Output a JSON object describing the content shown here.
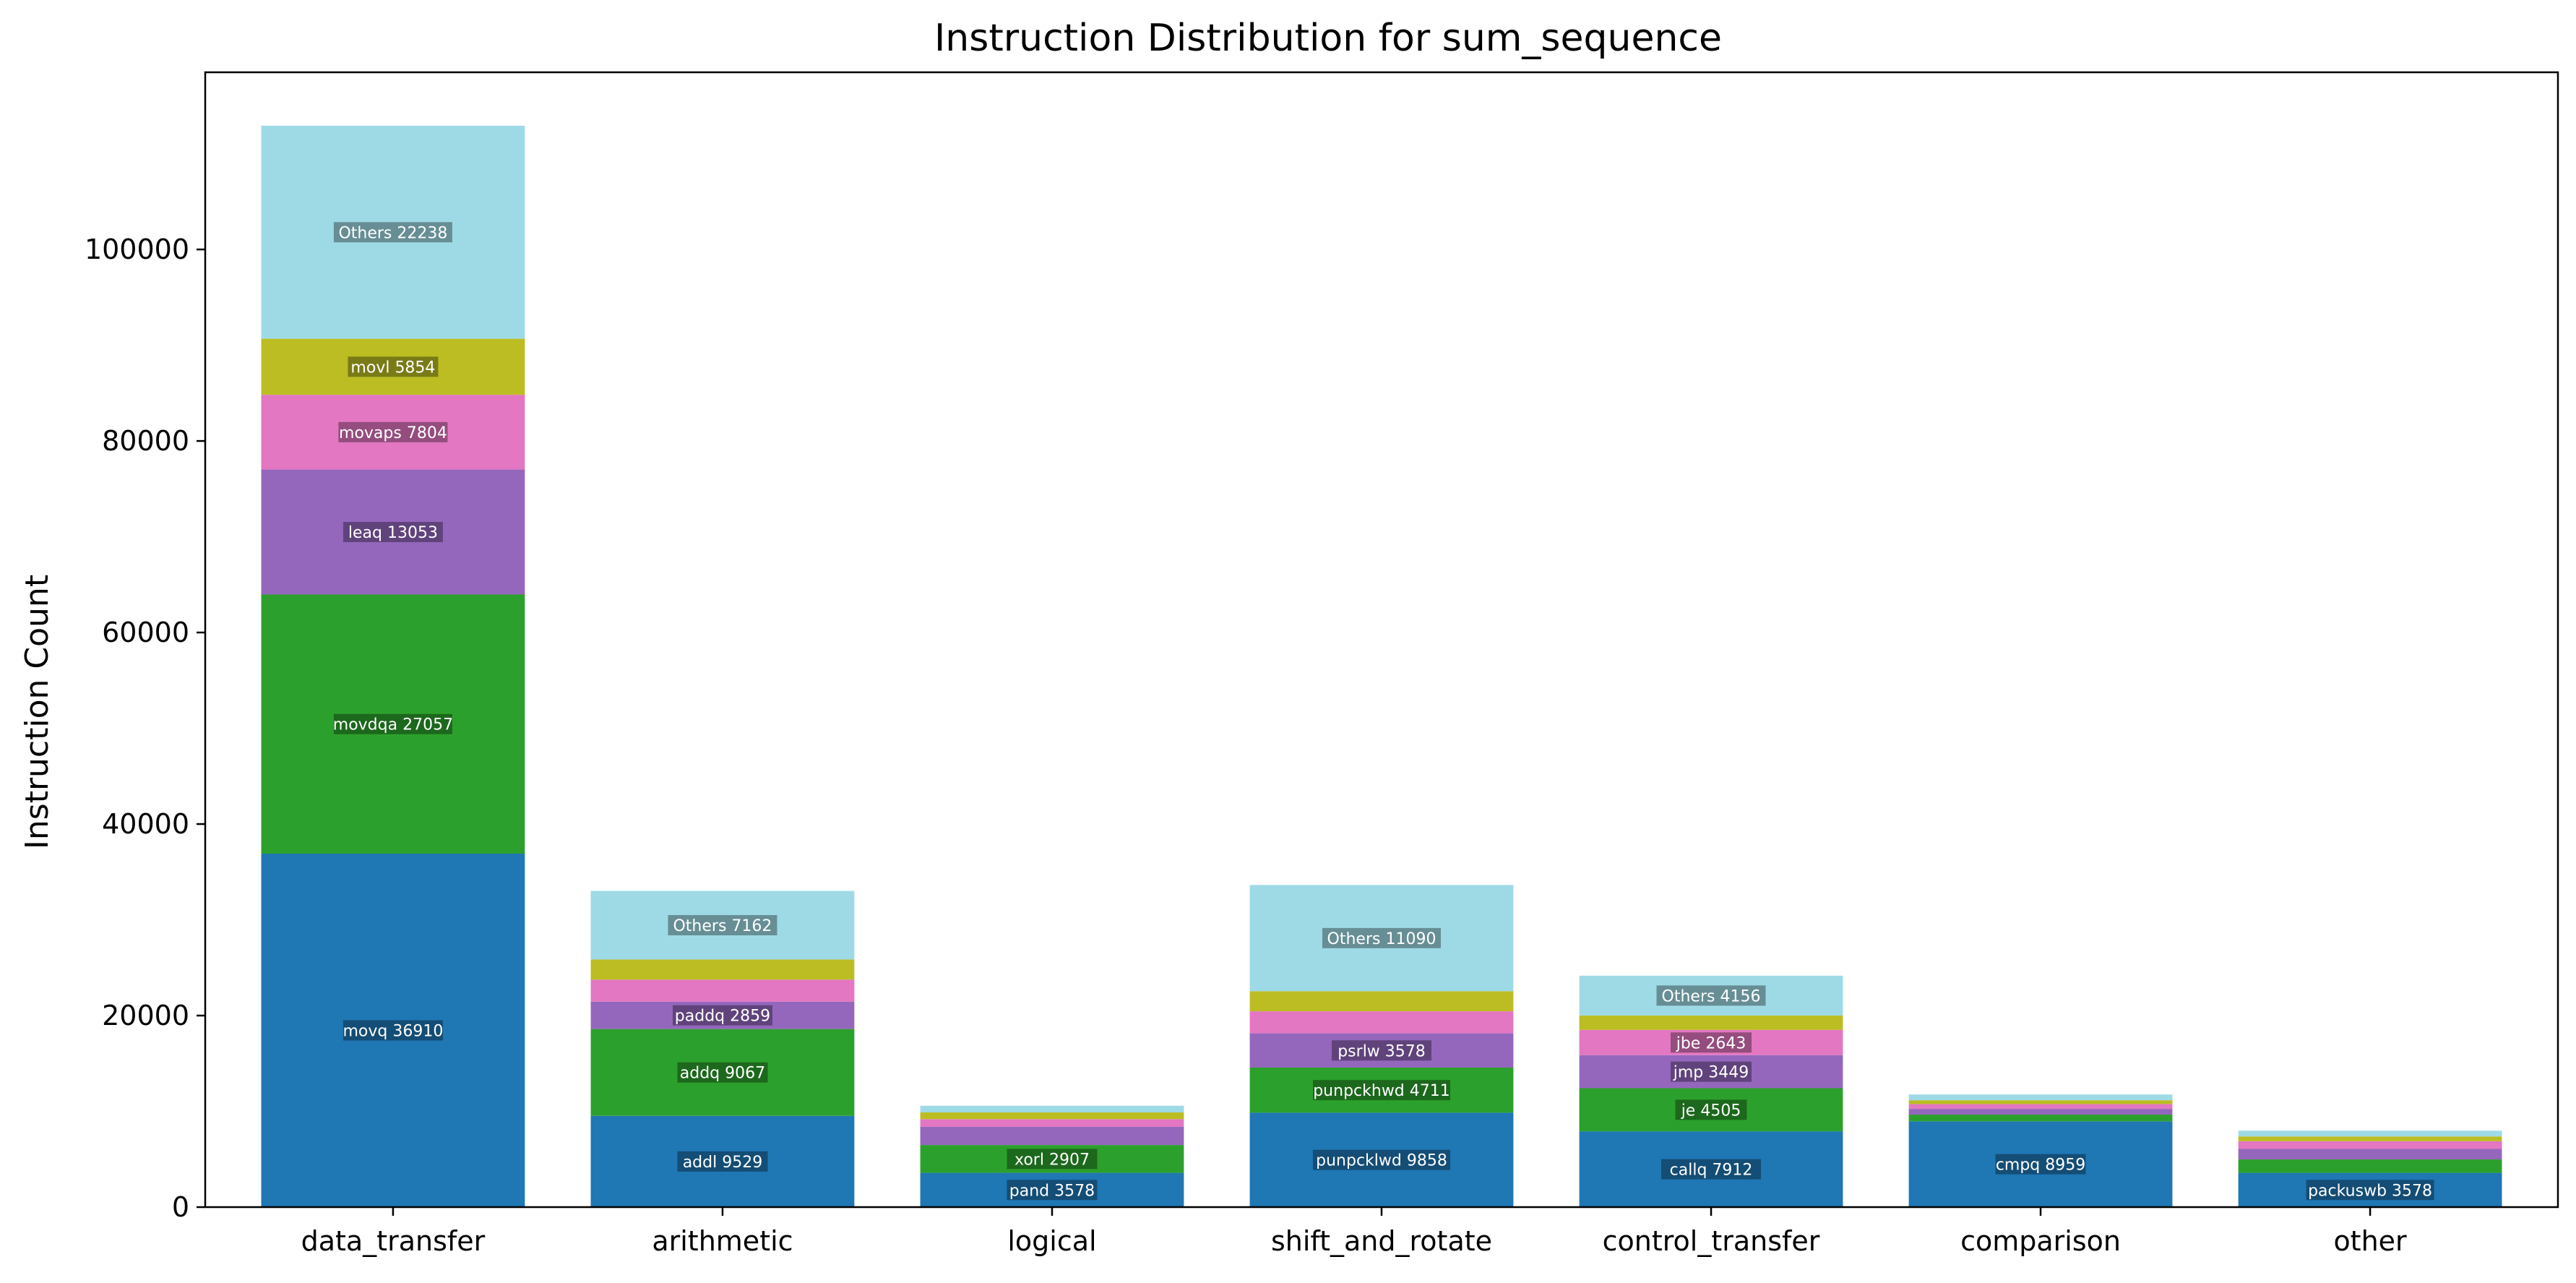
{
  "chart_data": {
    "type": "bar",
    "stacked": true,
    "title": "Instruction Distribution for sum_sequence",
    "xlabel": "",
    "ylabel": "Instruction Count",
    "ylim": [
      0,
      118500
    ],
    "yticks": [
      0,
      20000,
      40000,
      60000,
      80000,
      100000
    ],
    "grid": false,
    "legend": "none",
    "categories": [
      "data_transfer",
      "arithmetic",
      "logical",
      "shift_and_rotate",
      "control_transfer",
      "comparison",
      "other"
    ],
    "series_colors": [
      "#1f77b4",
      "#2ca02c",
      "#9467bd",
      "#e377c2",
      "#bcbd22",
      "#9edae5"
    ],
    "stacks": [
      {
        "category": "data_transfer",
        "segments": [
          {
            "name": "movq",
            "value": 36910
          },
          {
            "name": "movdqa",
            "value": 27057
          },
          {
            "name": "leaq",
            "value": 13053
          },
          {
            "name": "movaps",
            "value": 7804
          },
          {
            "name": "movl",
            "value": 5854
          },
          {
            "name": "Others",
            "value": 22238
          }
        ]
      },
      {
        "category": "arithmetic",
        "segments": [
          {
            "name": "addl",
            "value": 9529
          },
          {
            "name": "addq",
            "value": 9067
          },
          {
            "name": "paddq",
            "value": 2859
          },
          {
            "name": "",
            "value": 2300
          },
          {
            "name": "",
            "value": 2100
          },
          {
            "name": "Others",
            "value": 7162
          }
        ]
      },
      {
        "category": "logical",
        "segments": [
          {
            "name": "pand",
            "value": 3578
          },
          {
            "name": "xorl",
            "value": 2907
          },
          {
            "name": "",
            "value": 1900
          },
          {
            "name": "",
            "value": 800
          },
          {
            "name": "",
            "value": 700
          },
          {
            "name": "",
            "value": 700
          }
        ]
      },
      {
        "category": "shift_and_rotate",
        "segments": [
          {
            "name": "punpcklwd",
            "value": 9858
          },
          {
            "name": "punpckhwd",
            "value": 4711
          },
          {
            "name": "psrlw",
            "value": 3578
          },
          {
            "name": "",
            "value": 2300
          },
          {
            "name": "",
            "value": 2100
          },
          {
            "name": "Others",
            "value": 11090
          }
        ]
      },
      {
        "category": "control_transfer",
        "segments": [
          {
            "name": "callq",
            "value": 7912
          },
          {
            "name": "je",
            "value": 4505
          },
          {
            "name": "jmp",
            "value": 3449
          },
          {
            "name": "jbe",
            "value": 2643
          },
          {
            "name": "",
            "value": 1500
          },
          {
            "name": "Others",
            "value": 4156
          }
        ]
      },
      {
        "category": "comparison",
        "segments": [
          {
            "name": "cmpq",
            "value": 8959
          },
          {
            "name": "",
            "value": 700
          },
          {
            "name": "",
            "value": 600
          },
          {
            "name": "",
            "value": 500
          },
          {
            "name": "",
            "value": 400
          },
          {
            "name": "",
            "value": 600
          }
        ]
      },
      {
        "category": "other",
        "segments": [
          {
            "name": "packuswb",
            "value": 3578
          },
          {
            "name": "",
            "value": 1400
          },
          {
            "name": "",
            "value": 1100
          },
          {
            "name": "",
            "value": 800
          },
          {
            "name": "",
            "value": 500
          },
          {
            "name": "",
            "value": 600
          }
        ]
      }
    ]
  }
}
